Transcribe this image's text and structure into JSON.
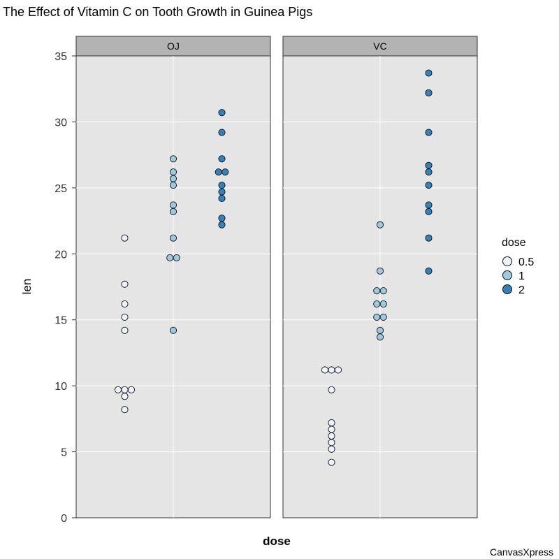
{
  "chart_data": {
    "type": "scatter",
    "title": "The Effect of Vitamin C on Tooth Growth in Guinea Pigs",
    "xlabel": "dose",
    "ylabel": "len",
    "ylim": [
      0,
      35
    ],
    "yticks": [
      0,
      5,
      10,
      15,
      20,
      25,
      30,
      35
    ],
    "grid": true,
    "legend": {
      "title": "dose",
      "position": "right",
      "entries": [
        "0.5",
        "1",
        "2"
      ]
    },
    "colors": {
      "0.5": "#EFF3FF",
      "1": "#9ECAE1",
      "2": "#3182BD"
    },
    "panels": [
      {
        "name": "OJ",
        "groups": [
          {
            "dose": "0.5",
            "values": [
              21.2,
              17.7,
              16.2,
              15.2,
              14.2,
              9.7,
              9.7,
              9.7,
              9.2,
              8.2
            ]
          },
          {
            "dose": "1",
            "values": [
              27.2,
              26.2,
              25.7,
              25.2,
              23.7,
              23.2,
              21.2,
              19.7,
              19.7,
              14.2
            ]
          },
          {
            "dose": "2",
            "values": [
              30.7,
              29.2,
              27.2,
              26.2,
              26.2,
              25.2,
              24.7,
              24.2,
              22.7,
              22.2
            ]
          }
        ]
      },
      {
        "name": "VC",
        "groups": [
          {
            "dose": "0.5",
            "values": [
              11.2,
              11.2,
              11.2,
              9.7,
              7.2,
              6.7,
              6.2,
              5.7,
              5.2,
              4.2
            ]
          },
          {
            "dose": "1",
            "values": [
              22.2,
              18.7,
              17.2,
              17.2,
              16.2,
              16.2,
              15.2,
              15.2,
              14.2,
              13.7
            ]
          },
          {
            "dose": "2",
            "values": [
              33.7,
              32.2,
              29.2,
              26.7,
              26.2,
              25.2,
              23.7,
              23.2,
              21.2,
              18.7
            ]
          }
        ]
      }
    ]
  },
  "watermark": "CanvasXpress"
}
